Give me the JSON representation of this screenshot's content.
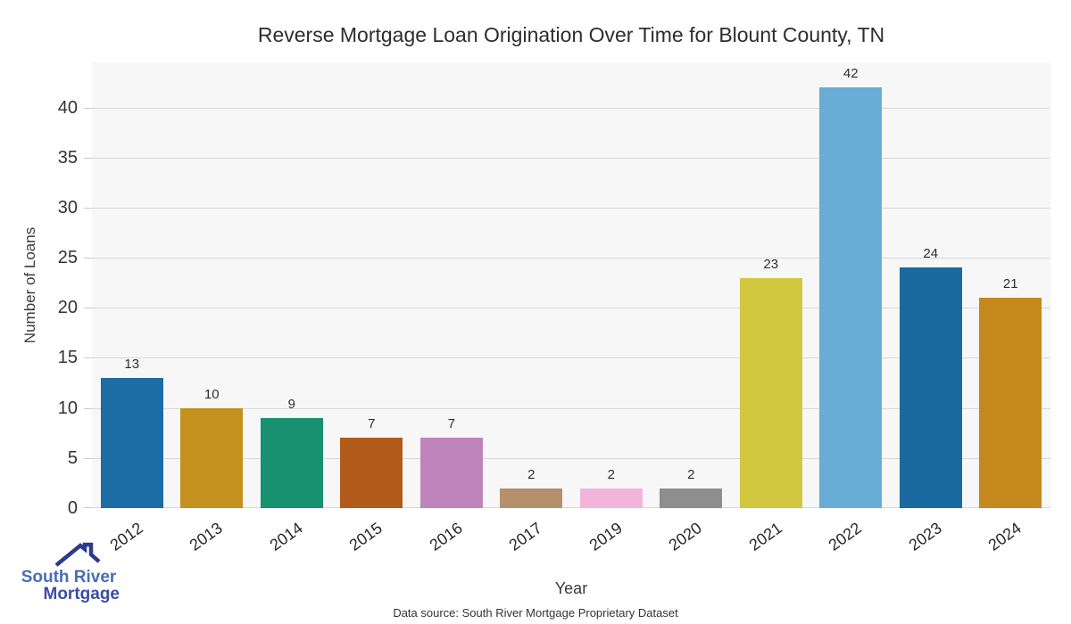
{
  "logo": {
    "line1": "South River",
    "line2": "Mortgage",
    "icon_color": "#2b3a8f",
    "line1_color": "#4a6db8",
    "line2_color": "#3a4da1"
  },
  "footer": {
    "data_source": "Data source: South River Mortgage Proprietary Dataset"
  },
  "chart_data": {
    "type": "bar",
    "title": "Reverse Mortgage Loan Origination Over Time for Blount County, TN",
    "xlabel": "Year",
    "ylabel": "Number of Loans",
    "categories": [
      "2012",
      "2013",
      "2014",
      "2015",
      "2016",
      "2017",
      "2019",
      "2020",
      "2021",
      "2022",
      "2023",
      "2024"
    ],
    "values": [
      13,
      10,
      9,
      7,
      7,
      2,
      2,
      2,
      23,
      42,
      24,
      21
    ],
    "bar_colors": [
      "#1c6da6",
      "#c4901e",
      "#189170",
      "#b25a1a",
      "#bf84ba",
      "#b5906c",
      "#f3b4da",
      "#8e8e8e",
      "#d2c83f",
      "#67add5",
      "#1b6a9f",
      "#c4881c"
    ],
    "yticks": [
      0,
      5,
      10,
      15,
      20,
      25,
      30,
      35,
      40
    ],
    "ylim": [
      0,
      44.5
    ],
    "grid": "horizontal",
    "legend": "none",
    "plot_bg": "#f7f7f7",
    "grid_color": "#d8d8d8",
    "value_labels": true
  }
}
